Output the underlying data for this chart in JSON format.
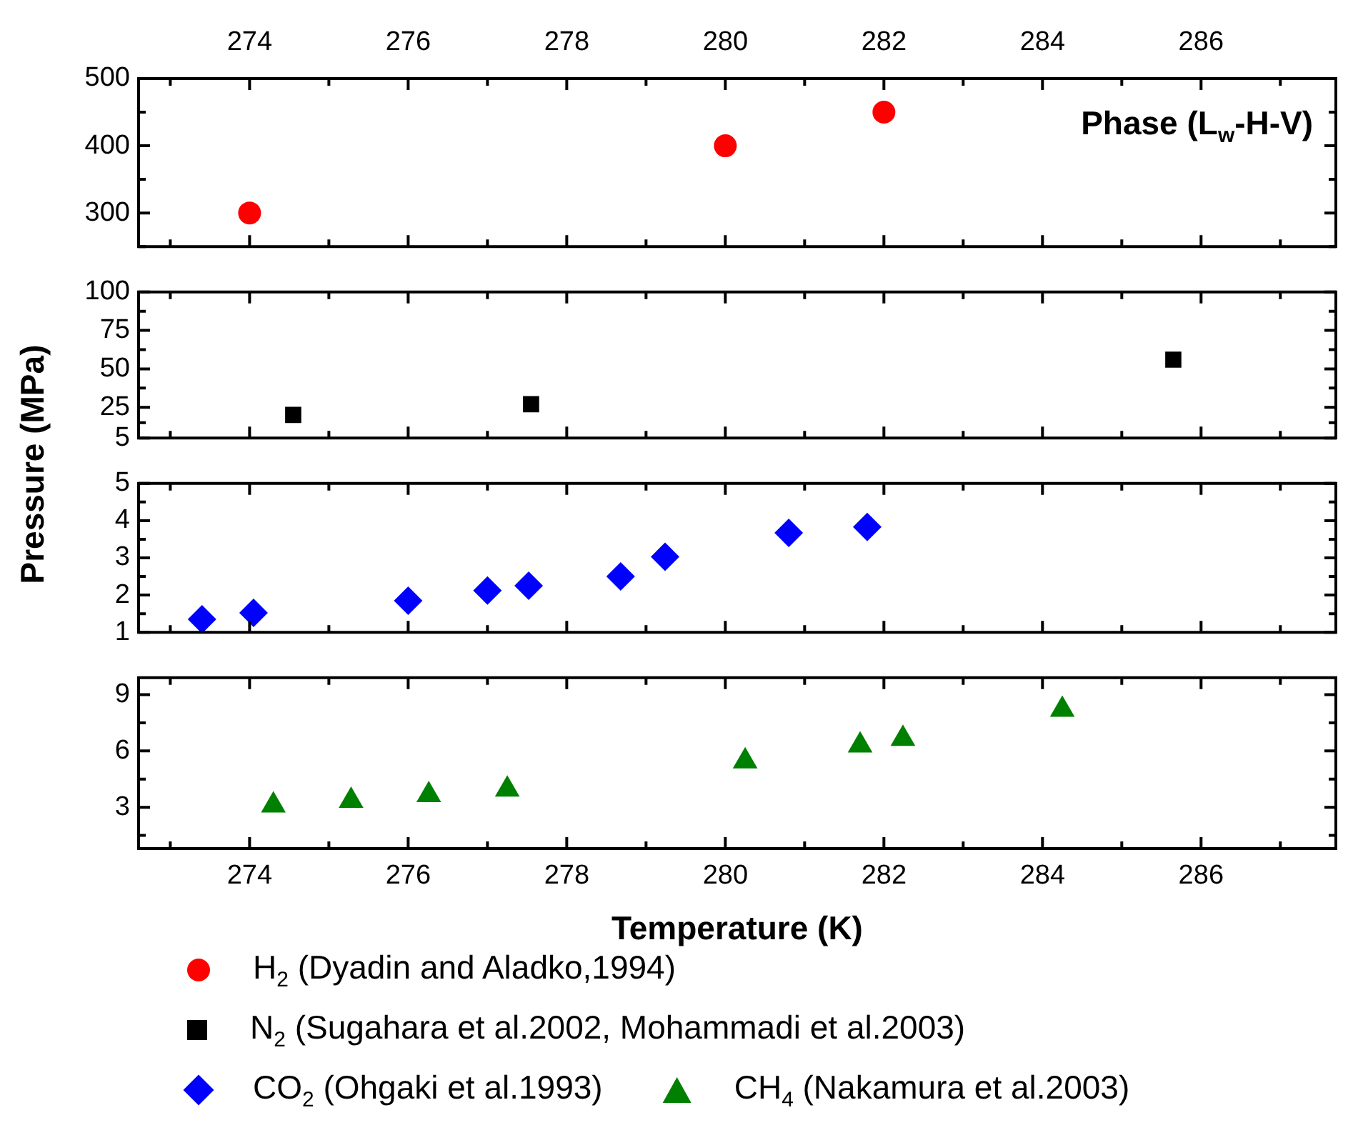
{
  "chart_data": [
    {
      "type": "scatter",
      "xlim": [
        272.6,
        287.7
      ],
      "xticks": [
        274,
        276,
        278,
        280,
        282,
        284,
        286
      ],
      "x2lim": [
        272.6,
        287.7
      ],
      "x2ticks": [
        274,
        276,
        278,
        280,
        282,
        284,
        286
      ],
      "ylim": [
        250,
        500
      ],
      "yticks": [
        300,
        400,
        500
      ],
      "tick_labels": "y",
      "legend": "bottom",
      "marker": "circle",
      "annotations": [
        "Phase (L$_{w}$-H-V)"
      ],
      "series": [
        {
          "name": "H$_{2}$ (Dyadin and Aladko,1994)",
          "color": "#ff0000",
          "x": [
            274,
            280,
            282
          ],
          "values": [
            300,
            400,
            450
          ]
        }
      ]
    },
    {
      "type": "scatter",
      "xlim": [
        272.6,
        287.7
      ],
      "xticks": [
        274,
        276,
        278,
        280,
        282,
        284,
        286
      ],
      "ylim": [
        5,
        100
      ],
      "yticks": [
        5,
        25,
        50,
        75,
        100
      ],
      "tick_labels": "y",
      "legend": "bottom",
      "marker": "square",
      "ylabel": "Pressure (MPa)",
      "series": [
        {
          "name": "N$_{2}$ (Sugahara et al.2002, Mohammadi et al.2003)",
          "color": "#000000",
          "x": [
            274.55,
            277.55,
            285.65
          ],
          "values": [
            20,
            27,
            56
          ]
        }
      ]
    },
    {
      "type": "scatter",
      "xlim": [
        272.6,
        287.7
      ],
      "xticks": [
        274,
        276,
        278,
        280,
        282,
        284,
        286
      ],
      "ylim": [
        1,
        5
      ],
      "yticks": [
        1,
        2,
        3,
        4,
        5
      ],
      "tick_labels": "y",
      "legend": "bottom",
      "marker": "diamond",
      "series": [
        {
          "name": "CO$_{2}$ (Ohgaki et al.1993)",
          "color": "#0000ff",
          "x": [
            273.4,
            274.05,
            276.0,
            277.0,
            277.52,
            278.68,
            279.24,
            280.8,
            281.79
          ],
          "values": [
            1.35,
            1.52,
            1.85,
            2.12,
            2.25,
            2.5,
            3.03,
            3.67,
            3.83
          ]
        }
      ]
    },
    {
      "type": "scatter",
      "xlim": [
        272.6,
        287.7
      ],
      "xticks": [
        274,
        276,
        278,
        280,
        282,
        284,
        286
      ],
      "ylim": [
        0.8,
        9.9
      ],
      "yticks": [
        3,
        6,
        9
      ],
      "legend": "bottom",
      "marker": "triangle",
      "xlabel": "Temperature (K)",
      "series": [
        {
          "name": "CH$_{4}$ (Nakamura et al.2003)",
          "color": "#008000",
          "x": [
            274.3,
            275.28,
            276.26,
            277.25,
            280.25,
            281.7,
            282.24,
            284.25
          ],
          "values": [
            3.1,
            3.35,
            3.65,
            3.95,
            5.45,
            6.3,
            6.65,
            8.2
          ]
        }
      ]
    }
  ]
}
